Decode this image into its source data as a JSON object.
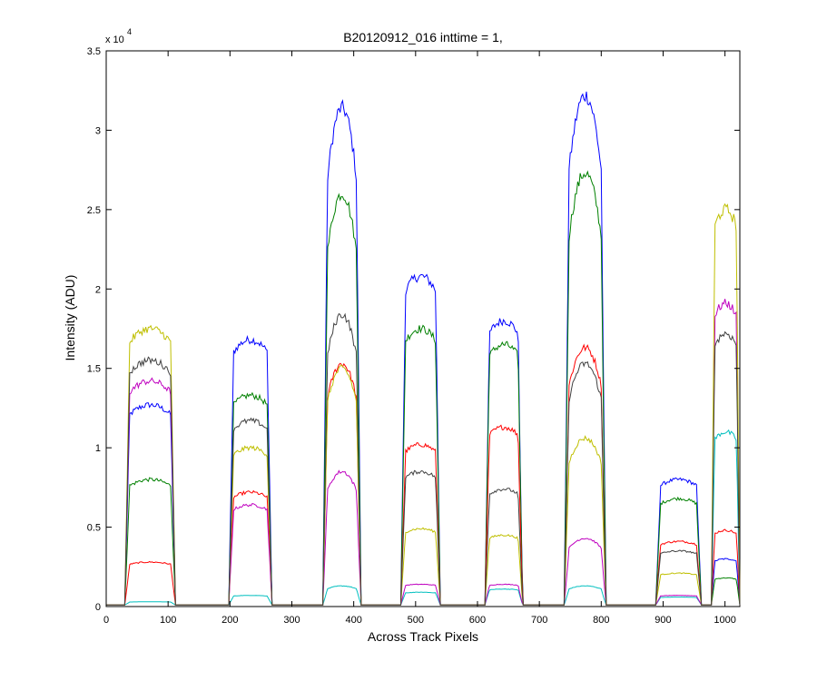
{
  "chart_data": {
    "type": "line",
    "title": "B20120912_016 inttime = 1,",
    "xlabel": "Across Track Pixels",
    "ylabel": "Intensity (ADU)",
    "y_exponent_label": "x 10",
    "y_exponent": "4",
    "xlim": [
      0,
      1024
    ],
    "ylim": [
      0,
      3.5
    ],
    "xticks": [
      0,
      100,
      200,
      300,
      400,
      500,
      600,
      700,
      800,
      900,
      1000
    ],
    "xtick_labels": [
      "0",
      "100",
      "200",
      "300",
      "400",
      "500",
      "600",
      "700",
      "800",
      "900",
      "1000"
    ],
    "yticks": [
      0,
      0.5,
      1,
      1.5,
      2,
      2.5,
      3,
      3.5
    ],
    "ytick_labels": [
      "0",
      "0.5",
      "1",
      "1.5",
      "2",
      "2.5",
      "3",
      "3.5"
    ],
    "grid": false,
    "legend": "none",
    "baseline": 0.01,
    "segments": [
      {
        "x_start": 30,
        "x_end": 112
      },
      {
        "x_start": 198,
        "x_end": 268
      },
      {
        "x_start": 350,
        "x_end": 412
      },
      {
        "x_start": 476,
        "x_end": 540
      },
      {
        "x_start": 612,
        "x_end": 673
      },
      {
        "x_start": 740,
        "x_end": 808
      },
      {
        "x_start": 888,
        "x_end": 962
      },
      {
        "x_start": 978,
        "x_end": 1024
      }
    ],
    "series": [
      {
        "color": "#0000ff",
        "peaks": [
          1.27,
          1.68,
          3.14,
          2.08,
          1.8,
          3.22,
          0.8,
          0.3
        ]
      },
      {
        "color": "#008000",
        "peaks": [
          0.8,
          1.33,
          2.6,
          1.75,
          1.65,
          2.73,
          0.68,
          0.18
        ]
      },
      {
        "color": "#ff0000",
        "peaks": [
          0.28,
          0.72,
          1.53,
          1.02,
          1.13,
          1.63,
          0.41,
          0.48
        ]
      },
      {
        "color": "#00bfbf",
        "peaks": [
          0.03,
          0.07,
          0.13,
          0.09,
          0.11,
          0.13,
          0.06,
          1.1
        ]
      },
      {
        "color": "#bf00bf",
        "peaks": [
          1.42,
          0.64,
          0.85,
          0.14,
          0.14,
          0.43,
          0.07,
          1.91
        ]
      },
      {
        "color": "#bfbf00",
        "peaks": [
          1.75,
          1.0,
          1.5,
          0.49,
          0.45,
          1.06,
          0.21,
          2.5
        ]
      },
      {
        "color": "#404040",
        "peaks": [
          1.55,
          1.17,
          1.84,
          0.85,
          0.74,
          1.53,
          0.35,
          1.72
        ]
      }
    ]
  }
}
